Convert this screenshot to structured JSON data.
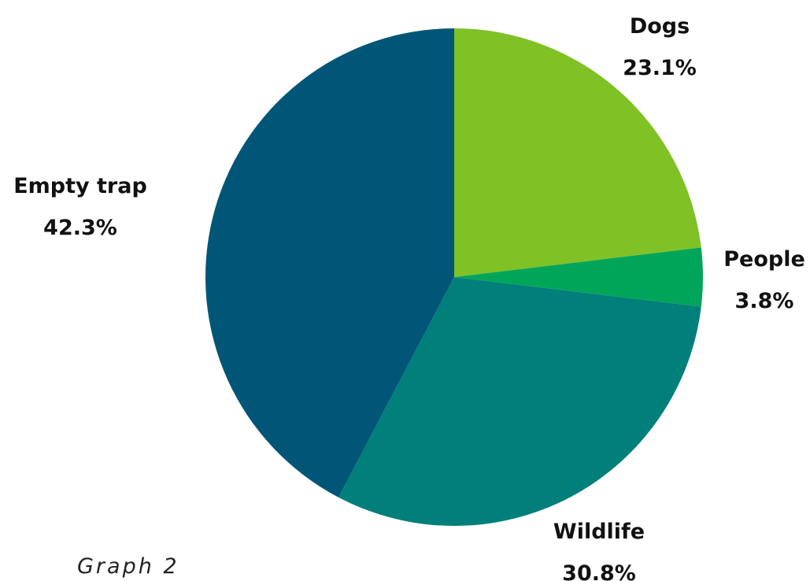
{
  "caption": "Graph 2",
  "colors": {
    "dogs": "#80c126",
    "people": "#00a55a",
    "wildlife": "#017f7a",
    "empty_trap": "#015677",
    "label_text": "#111111"
  },
  "chart_data": {
    "type": "pie",
    "start_angle": "12 o'clock",
    "direction": "clockwise",
    "slices": [
      {
        "name": "Dogs",
        "value": 23.1,
        "value_label": "23.1%",
        "color": "#80c126"
      },
      {
        "name": "People",
        "value": 3.8,
        "value_label": "3.8%",
        "color": "#00a55a"
      },
      {
        "name": "Wildlife",
        "value": 30.8,
        "value_label": "30.8%",
        "color": "#017f7a"
      },
      {
        "name": "Empty trap",
        "value": 42.3,
        "value_label": "42.3%",
        "color": "#015677"
      }
    ]
  }
}
